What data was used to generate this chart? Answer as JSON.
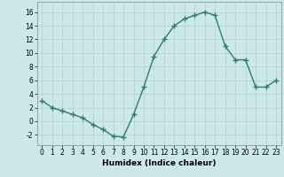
{
  "x": [
    0,
    1,
    2,
    3,
    4,
    5,
    6,
    7,
    8,
    9,
    10,
    11,
    12,
    13,
    14,
    15,
    16,
    17,
    18,
    19,
    20,
    21,
    22,
    23
  ],
  "y": [
    3,
    2,
    1.5,
    1,
    0.5,
    -0.5,
    -1.2,
    -2.2,
    -2.3,
    1,
    5,
    9.5,
    12,
    14,
    15,
    15.5,
    16,
    15.5,
    11,
    9,
    9,
    5,
    5,
    6
  ],
  "line_color": "#2e7d6e",
  "marker": "+",
  "marker_size": 4,
  "linewidth": 1.0,
  "bg_color": "#cce8ea",
  "grid_color": "#b0ced0",
  "xlabel": "Humidex (Indice chaleur)",
  "ylim": [
    -3.5,
    17.5
  ],
  "yticks": [
    -2,
    0,
    2,
    4,
    6,
    8,
    10,
    12,
    14,
    16
  ],
  "xticks": [
    0,
    1,
    2,
    3,
    4,
    5,
    6,
    7,
    8,
    9,
    10,
    11,
    12,
    13,
    14,
    15,
    16,
    17,
    18,
    19,
    20,
    21,
    22,
    23
  ],
  "tick_fontsize": 5.5,
  "label_fontsize": 6.5
}
